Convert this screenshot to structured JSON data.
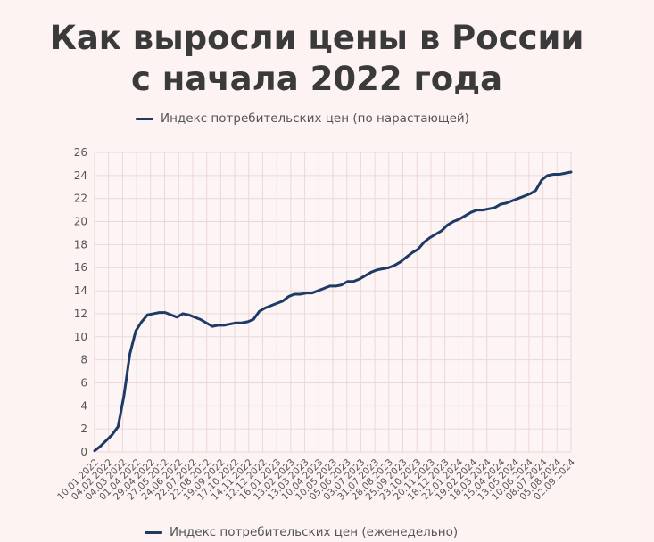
{
  "title_line1": "Как выросли цены в России",
  "title_line2": "с начала 2022 года",
  "legend_top": "Индекс потребительских цен (по нарастающей)",
  "legend_bottom": "Индекс потребительских цен (еженедельно)",
  "chart_data": {
    "type": "line",
    "title": "Как выросли цены в России с начала 2022 года",
    "xlabel": "",
    "ylabel": "",
    "ylim": [
      0,
      26
    ],
    "yticks": [
      0,
      2,
      4,
      6,
      8,
      10,
      12,
      14,
      16,
      18,
      20,
      22,
      24,
      26
    ],
    "grid": true,
    "legend": "top",
    "line_color": "#1e3a66",
    "xtick_labels": [
      "10.01.2022",
      "04.02.2022",
      "04.03.2022",
      "01.04.2022",
      "29.04.2022",
      "27.05.2022",
      "24.06.2022",
      "22.07.2022",
      "22.08.2022",
      "19.09.2022",
      "17.10.2022",
      "14.11.2022",
      "12.12.2022",
      "16.01.2023",
      "13.02.2023",
      "13.03.2023",
      "10.04.2023",
      "10.05.2023",
      "05.06.2023",
      "03.07.2023",
      "31.07.2023",
      "28.08.2023",
      "25.09.2023",
      "23.10.2023",
      "20.11.2023",
      "18.12.2023",
      "22.01.2024",
      "19.02.2024",
      "18.03.2024",
      "15.04.2024",
      "13.05.2024",
      "10.06.2024",
      "08.07.2024",
      "05.08.2024",
      "02.09.2024"
    ],
    "series": [
      {
        "name": "Индекс потребительских цен (по нарастающей)",
        "values": [
          0.1,
          0.5,
          1.0,
          1.5,
          2.2,
          4.9,
          8.5,
          10.5,
          11.3,
          11.9,
          12.0,
          12.1,
          12.1,
          11.9,
          11.7,
          12.0,
          11.9,
          11.7,
          11.5,
          11.2,
          10.9,
          11.0,
          11.0,
          11.1,
          11.2,
          11.2,
          11.3,
          11.5,
          12.2,
          12.5,
          12.7,
          12.9,
          13.1,
          13.5,
          13.7,
          13.7,
          13.8,
          13.8,
          14.0,
          14.2,
          14.4,
          14.4,
          14.5,
          14.8,
          14.8,
          15.0,
          15.3,
          15.6,
          15.8,
          15.9,
          16.0,
          16.2,
          16.5,
          16.9,
          17.3,
          17.6,
          18.2,
          18.6,
          18.9,
          19.2,
          19.7,
          20.0,
          20.2,
          20.5,
          20.8,
          21.0,
          21.0,
          21.1,
          21.2,
          21.5,
          21.6,
          21.8,
          22.0,
          22.2,
          22.4,
          22.7,
          23.6,
          24.0,
          24.1,
          24.1,
          24.2,
          24.3
        ]
      }
    ]
  }
}
